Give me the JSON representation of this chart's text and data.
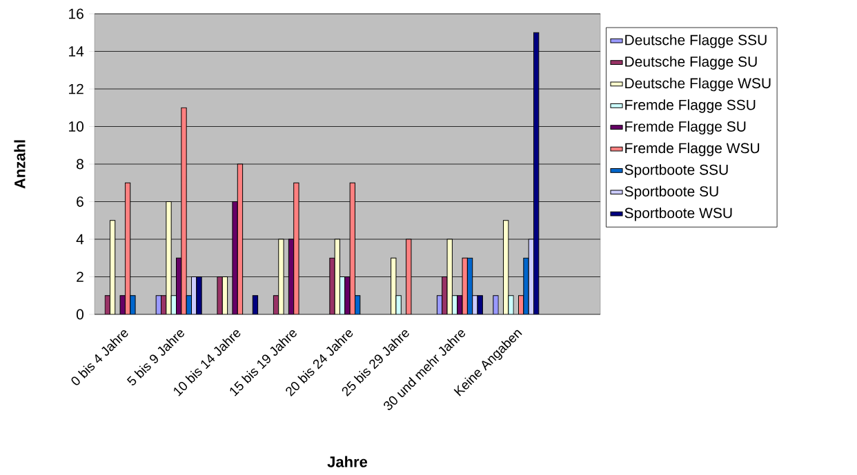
{
  "chart_data": {
    "type": "bar",
    "xlabel": "Jahre",
    "ylabel": "Anzahl",
    "categories": [
      "0 bis 4 Jahre",
      "5 bis 9 Jahre",
      "10 bis 14 Jahre",
      "15 bis 19 Jahre",
      "20 bis 24 Jahre",
      "25 bis 29 Jahre",
      "30 und mehr Jahre",
      "Keine Angaben",
      null
    ],
    "series": [
      {
        "name": "Deutsche Flagge SSU",
        "color": "#9999ff",
        "values": [
          null,
          1,
          null,
          null,
          null,
          null,
          1,
          1,
          null
        ]
      },
      {
        "name": "Deutsche Flagge SU",
        "color": "#993366",
        "values": [
          1,
          1,
          2,
          1,
          3,
          null,
          2,
          null,
          null
        ]
      },
      {
        "name": "Deutsche Flagge WSU",
        "color": "#ffffcc",
        "values": [
          5,
          6,
          2,
          4,
          4,
          3,
          4,
          5,
          null
        ]
      },
      {
        "name": "Fremde Flagge SSU",
        "color": "#ccffff",
        "values": [
          null,
          1,
          null,
          null,
          2,
          1,
          1,
          1,
          null
        ]
      },
      {
        "name": "Fremde Flagge SU",
        "color": "#660066",
        "values": [
          1,
          3,
          6,
          4,
          2,
          null,
          1,
          null,
          null
        ]
      },
      {
        "name": "Fremde Flagge WSU",
        "color": "#ff8080",
        "values": [
          7,
          11,
          8,
          7,
          7,
          4,
          3,
          1,
          null
        ]
      },
      {
        "name": "Sportboote SSU",
        "color": "#0066cc",
        "values": [
          1,
          1,
          null,
          null,
          1,
          null,
          3,
          3,
          null
        ]
      },
      {
        "name": "Sportboote SU",
        "color": "#ccccff",
        "values": [
          null,
          2,
          null,
          null,
          null,
          null,
          1,
          4,
          null
        ]
      },
      {
        "name": "Sportboote WSU",
        "color": "#000080",
        "values": [
          null,
          2,
          1,
          null,
          null,
          null,
          1,
          15,
          null
        ]
      }
    ],
    "ylim": [
      0,
      16
    ],
    "yticks": [
      0,
      2,
      4,
      6,
      8,
      10,
      12,
      14,
      16
    ],
    "grid": "y",
    "legend": "right"
  }
}
